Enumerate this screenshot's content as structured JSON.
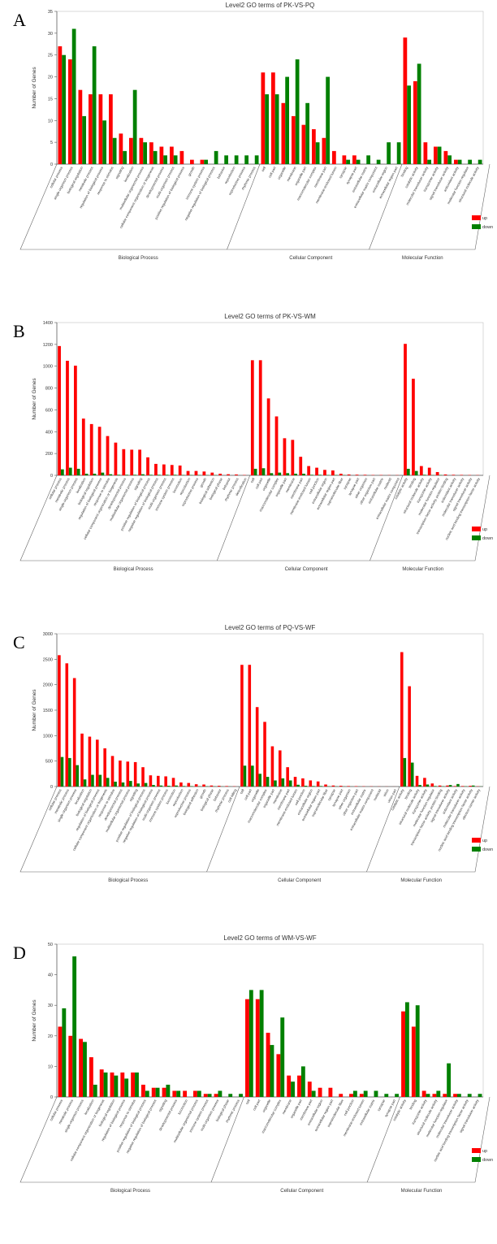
{
  "colors": {
    "up": "#ff0000",
    "down": "#008000"
  },
  "chart_data": [
    {
      "type": "bar",
      "panel_label": "A",
      "title": "Level2 GO terms of PK-VS-PQ",
      "ylabel": "Number of Genes",
      "xlabel": "",
      "ylim": [
        0,
        35
      ],
      "yticks": [
        0,
        5,
        10,
        15,
        20,
        25,
        30,
        35
      ],
      "legend": {
        "up": "up",
        "down": "down",
        "placement": "bottom-right"
      },
      "group_names": [
        "Biological Process",
        "Cellular Component",
        "Molecular Function"
      ],
      "categories": [
        "cellular process",
        "single-organism process",
        "biological regulation",
        "metabolic process",
        "regulation of biological process",
        "response to stimulus",
        "signaling",
        "localization",
        "multicellular organismal process",
        "cellular component organization or biogenesis",
        "developmental process",
        "multi-organism process",
        "positive regulation of biological process",
        "growth",
        "immune system process",
        "negative regulation of biological process",
        "behavior",
        "reproduction",
        "reproductive process",
        "rhythmic process",
        "cell",
        "cell part",
        "organelle",
        "membrane",
        "organelle part",
        "macromolecular complex",
        "membrane part",
        "membrane-enclosed lumen",
        "synapse",
        "synapse part",
        "extracellular matrix",
        "extracellular matrix component",
        "extracellular region",
        "extracellular region part",
        "binding",
        "catalytic activity",
        "molecular transducer activity",
        "transporter activity",
        "signal transducer activity",
        "antioxidant activity",
        "molecular function regulator",
        "structural molecule activity"
      ],
      "groups": [
        {
          "name": "Biological Process",
          "start": 0,
          "end": 19
        },
        {
          "name": "Cellular Component",
          "start": 20,
          "end": 33
        },
        {
          "name": "Molecular Function",
          "start": 34,
          "end": 41
        }
      ],
      "series": [
        {
          "name": "up",
          "values": [
            27,
            24,
            17,
            16,
            16,
            16,
            7,
            6,
            6,
            5,
            4,
            4,
            3,
            1,
            1,
            0,
            0,
            0,
            0,
            0,
            21,
            21,
            14,
            11,
            9,
            8,
            6,
            3,
            2,
            2,
            0,
            0,
            0,
            0,
            29,
            19,
            5,
            4,
            3,
            1,
            0,
            0
          ]
        },
        {
          "name": "down",
          "values": [
            25,
            31,
            11,
            27,
            10,
            6,
            3,
            17,
            5,
            3,
            2,
            2,
            0,
            0,
            1,
            3,
            2,
            2,
            2,
            2,
            16,
            16,
            20,
            24,
            14,
            5,
            20,
            0,
            1,
            1,
            2,
            1,
            5,
            5,
            18,
            23,
            1,
            4,
            2,
            1,
            1,
            1
          ]
        }
      ]
    },
    {
      "type": "bar",
      "panel_label": "B",
      "title": "Level2 GO terms of PK-VS-WM",
      "ylabel": "Number of Genes",
      "xlabel": "",
      "ylim": [
        0,
        1400
      ],
      "yticks": [
        0,
        200,
        400,
        600,
        800,
        1000,
        1200,
        1400
      ],
      "legend": {
        "up": "up",
        "down": "down",
        "placement": "bottom-right"
      },
      "group_names": [
        "Biological Process",
        "Cellular Component",
        "Molecular Function"
      ],
      "categories": [
        "cellular process",
        "metabolic process",
        "single-organism process",
        "localization",
        "biological regulation",
        "regulation of biological process",
        "response to stimulus",
        "cellular component organization or biogenesis",
        "developmental process",
        "multicellular organismal process",
        "signaling",
        "positive regulation of biological process",
        "negative regulation of biological process",
        "multi-organism process",
        "immune system process",
        "locomotion",
        "reproduction",
        "reproductive process",
        "growth",
        "biological adhesion",
        "biological phase",
        "behavior",
        "rhythmic process",
        "detoxification",
        "cell",
        "cell part",
        "organelle",
        "macromolecular complex",
        "organelle part",
        "membrane",
        "membrane part",
        "membrane-enclosed lumen",
        "cell junction",
        "extracellular region",
        "extracellular region part",
        "supramolecular fiber",
        "synapse",
        "synapse part",
        "other organism",
        "other organism part",
        "extracellular matrix",
        "nucleoid",
        "extracellular matrix component",
        "catalytic activity",
        "binding",
        "structural molecule activity",
        "transporter activity",
        "molecular function regulator",
        "transcription factor activity, protein binding",
        "antioxidant activity",
        "molecular transducer activity",
        "signal transducer activity",
        "nucleic acid binding transcription factor activity"
      ],
      "groups": [
        {
          "name": "Biological Process",
          "start": 0,
          "end": 23
        },
        {
          "name": "Cellular Component",
          "start": 24,
          "end": 42
        },
        {
          "name": "Molecular Function",
          "start": 43,
          "end": 52
        }
      ],
      "series": [
        {
          "name": "up",
          "values": [
            1185,
            1050,
            1005,
            520,
            470,
            445,
            360,
            300,
            240,
            235,
            235,
            165,
            105,
            100,
            95,
            90,
            40,
            40,
            35,
            25,
            15,
            10,
            8,
            3,
            1055,
            1055,
            705,
            540,
            340,
            325,
            170,
            85,
            70,
            50,
            45,
            15,
            8,
            6,
            5,
            3,
            3,
            2,
            2,
            1205,
            885,
            85,
            70,
            30,
            8,
            5,
            4,
            3,
            2
          ]
        },
        {
          "name": "down",
          "values": [
            55,
            70,
            60,
            15,
            15,
            25,
            10,
            5,
            5,
            5,
            10,
            5,
            5,
            5,
            5,
            3,
            3,
            3,
            2,
            2,
            0,
            0,
            0,
            0,
            60,
            65,
            20,
            25,
            20,
            15,
            15,
            5,
            5,
            3,
            3,
            2,
            0,
            0,
            0,
            0,
            0,
            0,
            0,
            60,
            40,
            5,
            2,
            3,
            0,
            0,
            0,
            0,
            0
          ]
        }
      ]
    },
    {
      "type": "bar",
      "panel_label": "C",
      "title": "Level2 GO terms of PQ-VS-WF",
      "ylabel": "Number of Genes",
      "xlabel": "",
      "ylim": [
        0,
        3000
      ],
      "yticks": [
        0,
        500,
        1000,
        1500,
        2000,
        2500,
        3000
      ],
      "legend": {
        "up": "up",
        "down": "down",
        "placement": "bottom-right"
      },
      "group_names": [
        "Biological Process",
        "Cellular Component",
        "Molecular Function"
      ],
      "categories": [
        "cellular process",
        "metabolic process",
        "single-organism process",
        "localization",
        "biological regulation",
        "regulation of biological process",
        "cellular component organization or biogenesis",
        "response to stimulus",
        "developmental process",
        "multicellular organismal process",
        "signaling",
        "positive regulation of biological process",
        "negative regulation of biological process",
        "multi-organism process",
        "immune system process",
        "locomotion",
        "reproduction",
        "reproductive process",
        "biological adhesion",
        "growth",
        "biological phase",
        "behavior",
        "rhythmic process",
        "cell killing",
        "cell",
        "cell part",
        "organelle",
        "macromolecular complex",
        "organelle part",
        "membrane",
        "membrane part",
        "membrane-enclosed lumen",
        "cell junction",
        "extracellular region",
        "extracellular region part",
        "supramolecular fiber",
        "synapse",
        "synapse part",
        "other organism",
        "other organism part",
        "extracellular matrix",
        "extracellular matrix component",
        "nucleoid",
        "virion",
        "virion part",
        "catalytic activity",
        "binding",
        "structural molecule activity",
        "transporter activity",
        "molecular function regulator",
        "transcription factor activity, protein binding",
        "signal transducer activity",
        "antioxidant activity",
        "molecular transducer activity",
        "nucleic acid binding transcription factor activity",
        "electron carrier activity"
      ],
      "groups": [
        {
          "name": "Biological Process",
          "start": 0,
          "end": 23
        },
        {
          "name": "Cellular Component",
          "start": 24,
          "end": 44
        },
        {
          "name": "Molecular Function",
          "start": 45,
          "end": 55
        }
      ],
      "series": [
        {
          "name": "up",
          "values": [
            2580,
            2420,
            2130,
            1040,
            980,
            920,
            750,
            600,
            510,
            490,
            480,
            380,
            220,
            210,
            200,
            170,
            80,
            70,
            45,
            40,
            20,
            15,
            10,
            5,
            2390,
            2390,
            1560,
            1270,
            790,
            710,
            380,
            190,
            160,
            120,
            100,
            40,
            20,
            15,
            10,
            8,
            5,
            4,
            3,
            2,
            1,
            2640,
            1970,
            210,
            170,
            60,
            20,
            20,
            10,
            10,
            15,
            5
          ]
        },
        {
          "name": "down",
          "values": [
            580,
            560,
            420,
            140,
            230,
            230,
            170,
            95,
            80,
            110,
            60,
            70,
            30,
            20,
            15,
            20,
            10,
            8,
            5,
            5,
            3,
            2,
            2,
            0,
            410,
            410,
            250,
            190,
            120,
            160,
            120,
            35,
            15,
            10,
            10,
            5,
            3,
            2,
            1,
            1,
            0,
            0,
            0,
            0,
            0,
            560,
            470,
            30,
            40,
            10,
            5,
            30,
            50,
            5,
            20,
            3
          ]
        }
      ]
    },
    {
      "type": "bar",
      "panel_label": "D",
      "title": "Level2 GO terms of WM-VS-WF",
      "ylabel": "Number of Genes",
      "xlabel": "",
      "ylim": [
        0,
        50
      ],
      "yticks": [
        0,
        10,
        20,
        30,
        40,
        50
      ],
      "legend": {
        "up": "up",
        "down": "down",
        "placement": "bottom-right"
      },
      "group_names": [
        "Biological Process",
        "Cellular Component",
        "Molecular Function"
      ],
      "categories": [
        "cellular process",
        "metabolic process",
        "single-organism process",
        "localization",
        "cellular component organization or biogenesis",
        "biological regulation",
        "regulation of biological process",
        "response to stimulus",
        "positive regulation of biological process",
        "negative regulation of biological process",
        "signaling",
        "developmental process",
        "locomotion",
        "multicellular organismal process",
        "immune system process",
        "multi-organism process",
        "biological phase",
        "rhythmic process",
        "cell",
        "cell part",
        "organelle",
        "macromolecular complex",
        "membrane",
        "organelle part",
        "membrane part",
        "extracellular region",
        "extracellular region part",
        "supramolecular fiber",
        "cell junction",
        "membrane-enclosed lumen",
        "extracellular matrix",
        "synapse",
        "synapse part",
        "catalytic activity",
        "binding",
        "transporter activity",
        "structural molecule activity",
        "molecular function regulator",
        "molecular transducer activity",
        "nucleic acid binding transcription factor activity",
        "signal transducer activity"
      ],
      "groups": [
        {
          "name": "Biological Process",
          "start": 0,
          "end": 17
        },
        {
          "name": "Cellular Component",
          "start": 18,
          "end": 32
        },
        {
          "name": "Molecular Function",
          "start": 33,
          "end": 40
        }
      ],
      "series": [
        {
          "name": "up",
          "values": [
            23,
            20,
            19,
            13,
            9,
            8,
            8,
            8,
            4,
            3,
            3,
            2,
            2,
            2,
            1,
            1,
            0,
            0,
            32,
            32,
            21,
            14,
            7,
            7,
            5,
            3,
            3,
            1,
            1,
            1,
            0,
            0,
            0,
            28,
            23,
            2,
            1,
            1,
            1,
            0,
            0
          ]
        },
        {
          "name": "down",
          "values": [
            29,
            46,
            18,
            4,
            8,
            7,
            6,
            8,
            2,
            3,
            4,
            2,
            0,
            2,
            1,
            2,
            1,
            1,
            35,
            35,
            17,
            26,
            5,
            10,
            2,
            0,
            0,
            0,
            2,
            2,
            2,
            1,
            1,
            31,
            30,
            1,
            2,
            11,
            1,
            1,
            1
          ]
        }
      ]
    }
  ]
}
